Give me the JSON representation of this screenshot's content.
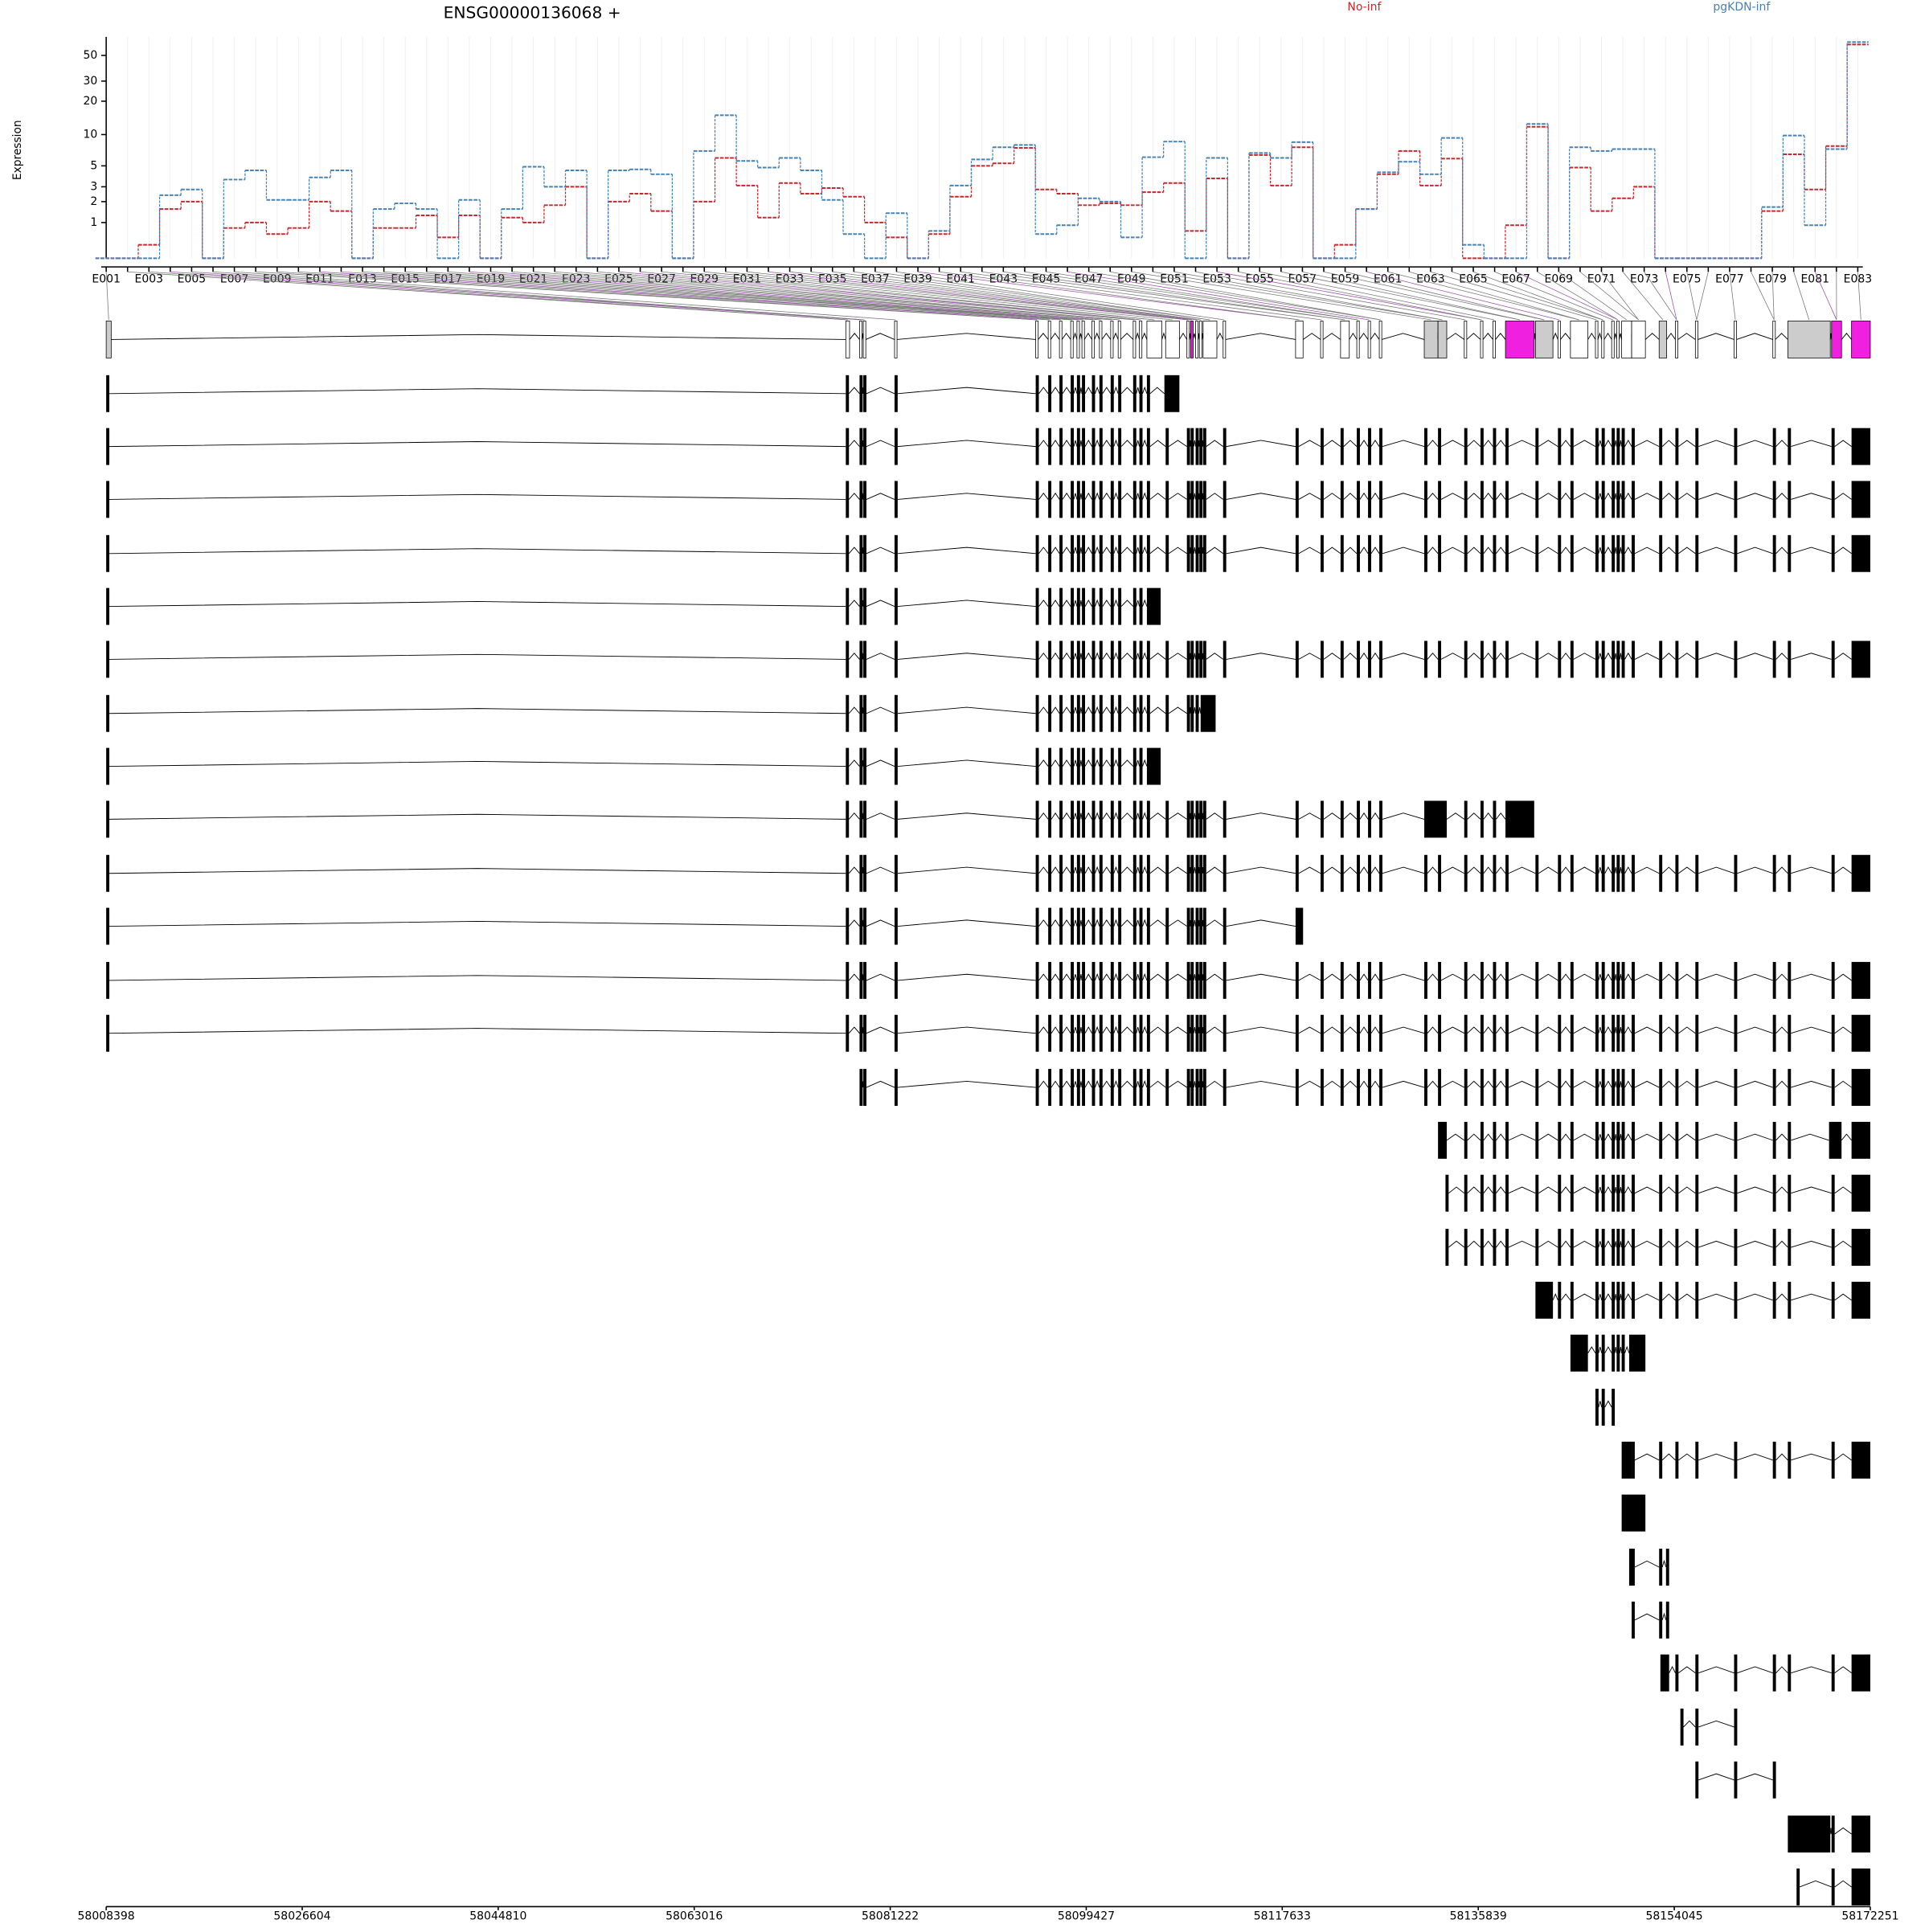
{
  "chart_data": {
    "type": "line",
    "title": "ENSG00000136068 +",
    "y_label": "Expression",
    "yscale": "log1p",
    "grid": true,
    "categories": [
      "E001",
      null,
      "E003",
      null,
      "E005",
      null,
      "E007",
      null,
      "E009",
      null,
      "E011",
      null,
      "E013",
      null,
      "E015",
      null,
      "E017",
      null,
      "E019",
      null,
      "E021",
      null,
      "E023",
      null,
      "E025",
      null,
      "E027",
      null,
      "E029",
      null,
      "E031",
      null,
      "E033",
      null,
      "E035",
      null,
      "E037",
      null,
      "E039",
      null,
      "E041",
      null,
      "E043",
      null,
      "E045",
      null,
      "E047",
      null,
      "E049",
      null,
      "E051",
      null,
      "E053",
      null,
      "E055",
      null,
      "E057",
      null,
      "E059",
      null,
      "E061",
      null,
      "E063",
      null,
      "E065",
      null,
      "E067",
      null,
      "E069",
      null,
      "E071",
      null,
      "E073",
      null,
      "E075",
      null,
      "E077",
      null,
      "E079",
      null,
      "E081",
      null,
      "E083"
    ],
    "series": [
      {
        "name": "No-inf",
        "color": "#c8282d",
        "values": [
          0,
          0,
          0.3,
          1.6,
          2.0,
          0,
          0.8,
          1.0,
          0.6,
          0.8,
          2.0,
          1.5,
          0,
          0.8,
          0.8,
          1.3,
          0.5,
          1.3,
          0,
          1.2,
          1.0,
          1.8,
          3.0,
          0,
          2.0,
          2.5,
          1.5,
          0,
          2.0,
          6.0,
          3.1,
          1.2,
          3.3,
          2.5,
          2.9,
          2.3,
          1.0,
          0.5,
          0,
          0.6,
          2.3,
          5.0,
          5.3,
          7.5,
          2.8,
          2.5,
          1.8,
          1.9,
          1.8,
          2.6,
          3.3,
          0.7,
          3.7,
          0,
          6.4,
          3.1,
          7.6,
          0,
          0.3,
          1.6,
          4.1,
          7.0,
          3.1,
          5.9,
          0,
          0,
          0.9,
          11.8,
          0,
          4.8,
          1.5,
          2.2,
          3.0,
          0,
          0,
          0,
          0,
          0,
          1.5,
          6.5,
          2.8,
          7.8,
          62
        ]
      },
      {
        "name": "pgKDN-inf",
        "color": "#4682b4",
        "values": [
          0,
          0,
          0,
          2.4,
          2.8,
          0,
          3.6,
          4.5,
          2.1,
          2.1,
          3.8,
          4.5,
          0,
          1.6,
          1.9,
          1.6,
          0,
          2.1,
          0,
          1.6,
          4.9,
          3.0,
          4.5,
          0,
          4.5,
          4.6,
          4.1,
          0,
          7.0,
          15,
          5.6,
          4.8,
          6.0,
          4.5,
          2.1,
          0.6,
          0,
          1.4,
          0,
          0.7,
          3.1,
          5.8,
          7.6,
          8.0,
          0.6,
          0.9,
          2.2,
          2.0,
          0.5,
          6.1,
          8.6,
          0,
          6.0,
          0,
          6.7,
          6.0,
          8.5,
          0,
          0,
          1.6,
          4.3,
          5.5,
          4.1,
          9.3,
          0.3,
          0,
          0,
          12.5,
          0,
          7.6,
          7.0,
          7.3,
          7.3,
          0,
          0,
          0,
          0,
          0,
          1.7,
          9.8,
          0.9,
          7.3,
          65
        ]
      }
    ],
    "ylim": [
      0,
      72
    ],
    "yticks": [
      1,
      2,
      3,
      5,
      10,
      20,
      30,
      50
    ],
    "genomic_axis": {
      "xlim": [
        58008398,
        58172251
      ],
      "xticks": [
        58008398,
        58026604,
        58044810,
        58063016,
        58081222,
        58099427,
        58117633,
        58135839,
        58154045,
        58172251
      ]
    }
  }
}
